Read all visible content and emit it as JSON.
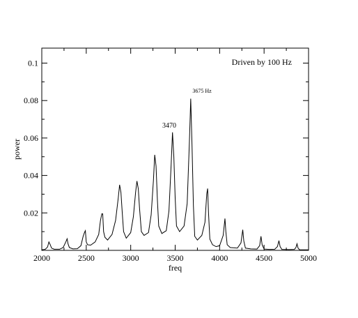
{
  "chart_data": {
    "type": "line",
    "xlabel": "freq",
    "ylabel": "power",
    "xlim": [
      2000,
      5000
    ],
    "ylim": [
      0,
      0.108
    ],
    "xticks": [
      2000,
      2500,
      3000,
      3500,
      4000,
      4500,
      5000
    ],
    "xtick_labels": [
      "2000",
      "2500",
      "3000",
      "3500",
      "4000",
      "4500",
      "5000"
    ],
    "yticks": [
      0.02,
      0.04,
      0.06,
      0.08,
      0.1
    ],
    "ytick_labels": [
      "0.02",
      "0.04",
      "0.06",
      "0.08",
      "0.1"
    ],
    "grid": false,
    "legend": "Driven by 100 Hz",
    "annotations": [
      {
        "text": "3470",
        "x": 3470,
        "y": 0.063
      },
      {
        "text": "3675 Hz",
        "x": 3675,
        "y": 0.081
      }
    ],
    "series": [
      {
        "values": [
          [
            2000,
            0.0003
          ],
          [
            2040,
            0.0006
          ],
          [
            2065,
            0.0018
          ],
          [
            2080,
            0.0045
          ],
          [
            2095,
            0.003
          ],
          [
            2110,
            0.0012
          ],
          [
            2140,
            0.0006
          ],
          [
            2200,
            0.0006
          ],
          [
            2240,
            0.0015
          ],
          [
            2270,
            0.0045
          ],
          [
            2285,
            0.0062
          ],
          [
            2295,
            0.0035
          ],
          [
            2310,
            0.0015
          ],
          [
            2350,
            0.0008
          ],
          [
            2400,
            0.0009
          ],
          [
            2440,
            0.0025
          ],
          [
            2465,
            0.0075
          ],
          [
            2480,
            0.0095
          ],
          [
            2490,
            0.0105
          ],
          [
            2500,
            0.0045
          ],
          [
            2515,
            0.003
          ],
          [
            2550,
            0.0028
          ],
          [
            2600,
            0.0045
          ],
          [
            2640,
            0.0085
          ],
          [
            2660,
            0.016
          ],
          [
            2675,
            0.0195
          ],
          [
            2685,
            0.0195
          ],
          [
            2695,
            0.01
          ],
          [
            2710,
            0.007
          ],
          [
            2740,
            0.0055
          ],
          [
            2790,
            0.0085
          ],
          [
            2830,
            0.016
          ],
          [
            2860,
            0.028
          ],
          [
            2875,
            0.035
          ],
          [
            2890,
            0.031
          ],
          [
            2905,
            0.02
          ],
          [
            2920,
            0.01
          ],
          [
            2950,
            0.0065
          ],
          [
            3000,
            0.0095
          ],
          [
            3030,
            0.018
          ],
          [
            3055,
            0.031
          ],
          [
            3070,
            0.037
          ],
          [
            3085,
            0.033
          ],
          [
            3100,
            0.022
          ],
          [
            3120,
            0.01
          ],
          [
            3150,
            0.008
          ],
          [
            3200,
            0.0095
          ],
          [
            3230,
            0.019
          ],
          [
            3255,
            0.037
          ],
          [
            3270,
            0.051
          ],
          [
            3285,
            0.045
          ],
          [
            3300,
            0.027
          ],
          [
            3315,
            0.013
          ],
          [
            3350,
            0.009
          ],
          [
            3400,
            0.0105
          ],
          [
            3430,
            0.021
          ],
          [
            3455,
            0.046
          ],
          [
            3470,
            0.063
          ],
          [
            3485,
            0.05
          ],
          [
            3500,
            0.028
          ],
          [
            3515,
            0.013
          ],
          [
            3550,
            0.01
          ],
          [
            3600,
            0.013
          ],
          [
            3635,
            0.025
          ],
          [
            3660,
            0.058
          ],
          [
            3675,
            0.081
          ],
          [
            3690,
            0.055
          ],
          [
            3705,
            0.024
          ],
          [
            3720,
            0.0075
          ],
          [
            3750,
            0.0055
          ],
          [
            3800,
            0.008
          ],
          [
            3835,
            0.015
          ],
          [
            3855,
            0.03
          ],
          [
            3865,
            0.033
          ],
          [
            3875,
            0.02
          ],
          [
            3890,
            0.006
          ],
          [
            3920,
            0.003
          ],
          [
            3960,
            0.002
          ],
          [
            4000,
            0.0025
          ],
          [
            4040,
            0.008
          ],
          [
            4060,
            0.017
          ],
          [
            4070,
            0.01
          ],
          [
            4085,
            0.003
          ],
          [
            4120,
            0.0015
          ],
          [
            4200,
            0.0012
          ],
          [
            4240,
            0.004
          ],
          [
            4260,
            0.011
          ],
          [
            4272,
            0.005
          ],
          [
            4290,
            0.0012
          ],
          [
            4350,
            0.0008
          ],
          [
            4420,
            0.0007
          ],
          [
            4450,
            0.0025
          ],
          [
            4465,
            0.0075
          ],
          [
            4478,
            0.003
          ],
          [
            4500,
            0.0007
          ],
          [
            4560,
            0.0005
          ],
          [
            4620,
            0.0006
          ],
          [
            4650,
            0.002
          ],
          [
            4667,
            0.0052
          ],
          [
            4680,
            0.002
          ],
          [
            4700,
            0.0005
          ],
          [
            4780,
            0.0004
          ],
          [
            4840,
            0.0005
          ],
          [
            4858,
            0.0015
          ],
          [
            4870,
            0.0035
          ],
          [
            4882,
            0.0012
          ],
          [
            4900,
            0.0003
          ],
          [
            4960,
            0.0003
          ],
          [
            5000,
            0.0003
          ]
        ]
      }
    ]
  }
}
